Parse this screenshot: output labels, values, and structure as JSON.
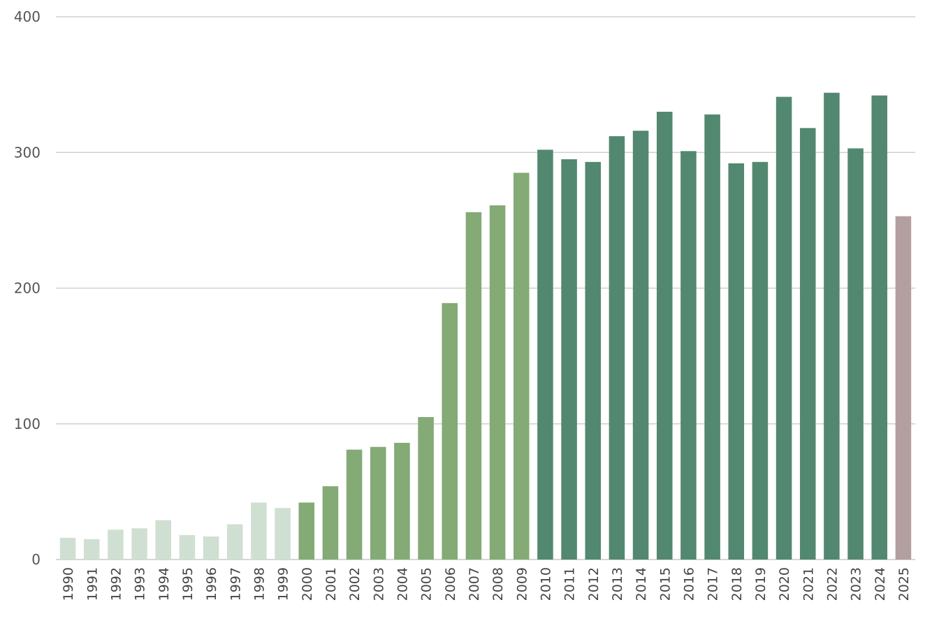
{
  "chart_data": {
    "type": "bar",
    "categories": [
      "1990",
      "1991",
      "1992",
      "1993",
      "1994",
      "1995",
      "1996",
      "1997",
      "1998",
      "1999",
      "2000",
      "2001",
      "2002",
      "2003",
      "2004",
      "2005",
      "2006",
      "2007",
      "2008",
      "2009",
      "2010",
      "2011",
      "2012",
      "2013",
      "2014",
      "2015",
      "2016",
      "2017",
      "2018",
      "2019",
      "2020",
      "2021",
      "2022",
      "2023",
      "2024",
      "2025"
    ],
    "values": [
      16,
      15,
      22,
      23,
      29,
      18,
      17,
      26,
      42,
      38,
      42,
      54,
      81,
      83,
      86,
      105,
      189,
      256,
      261,
      285,
      302,
      295,
      293,
      312,
      316,
      330,
      301,
      328,
      292,
      293,
      341,
      318,
      344,
      303,
      342,
      253
    ],
    "ylim": [
      0,
      400
    ],
    "yticks": [
      0,
      100,
      200,
      300,
      400
    ],
    "grid": true,
    "colors": {
      "era_1990s": "#cfe0d2",
      "era_2000s": "#84aa76",
      "era_2010s_on": "#538870",
      "latest": "#b39f9f"
    },
    "color_groups": [
      "era_1990s",
      "era_1990s",
      "era_1990s",
      "era_1990s",
      "era_1990s",
      "era_1990s",
      "era_1990s",
      "era_1990s",
      "era_1990s",
      "era_1990s",
      "era_2000s",
      "era_2000s",
      "era_2000s",
      "era_2000s",
      "era_2000s",
      "era_2000s",
      "era_2000s",
      "era_2000s",
      "era_2000s",
      "era_2000s",
      "era_2010s_on",
      "era_2010s_on",
      "era_2010s_on",
      "era_2010s_on",
      "era_2010s_on",
      "era_2010s_on",
      "era_2010s_on",
      "era_2010s_on",
      "era_2010s_on",
      "era_2010s_on",
      "era_2010s_on",
      "era_2010s_on",
      "era_2010s_on",
      "era_2010s_on",
      "era_2010s_on",
      "latest"
    ]
  }
}
